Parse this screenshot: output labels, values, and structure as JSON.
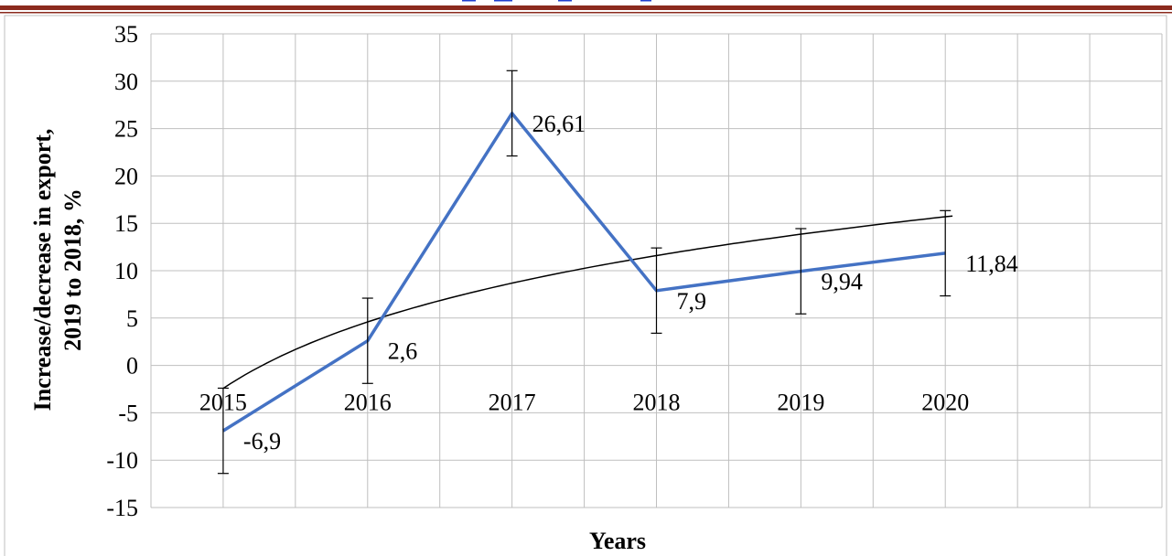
{
  "colors": {
    "series": "#4472c4",
    "trendline": "#000000",
    "grid": "#bfbfbf",
    "top_rule": "#8b2a1e",
    "clipped_title": "#1f3fd0"
  },
  "chart_data": {
    "type": "line",
    "title": "",
    "xlabel": "Years",
    "ylabel": "Increase/decrease in export, 2019 to 2018, %",
    "ylabel_lines": [
      "Increase/decrease in export,",
      "2019 to 2018, %"
    ],
    "ylim": [
      -15,
      35
    ],
    "ytick_step": 5,
    "yticks": [
      "35",
      "30",
      "25",
      "20",
      "15",
      "10",
      "5",
      "0",
      "-5",
      "-10",
      "-15"
    ],
    "x_categories": [
      "2015",
      "2016",
      "2017",
      "2018",
      "2019",
      "2020"
    ],
    "grid": true,
    "legend": "none",
    "series": [
      {
        "values": [
          -6.9,
          2.6,
          26.61,
          7.9,
          9.94,
          11.84
        ],
        "data_labels": [
          "-6,9",
          "2,6",
          "26,61",
          "7,9",
          "9,94",
          "11,84"
        ],
        "error_bar": 4.5
      }
    ],
    "trendline": {
      "type": "logarithmic"
    }
  }
}
